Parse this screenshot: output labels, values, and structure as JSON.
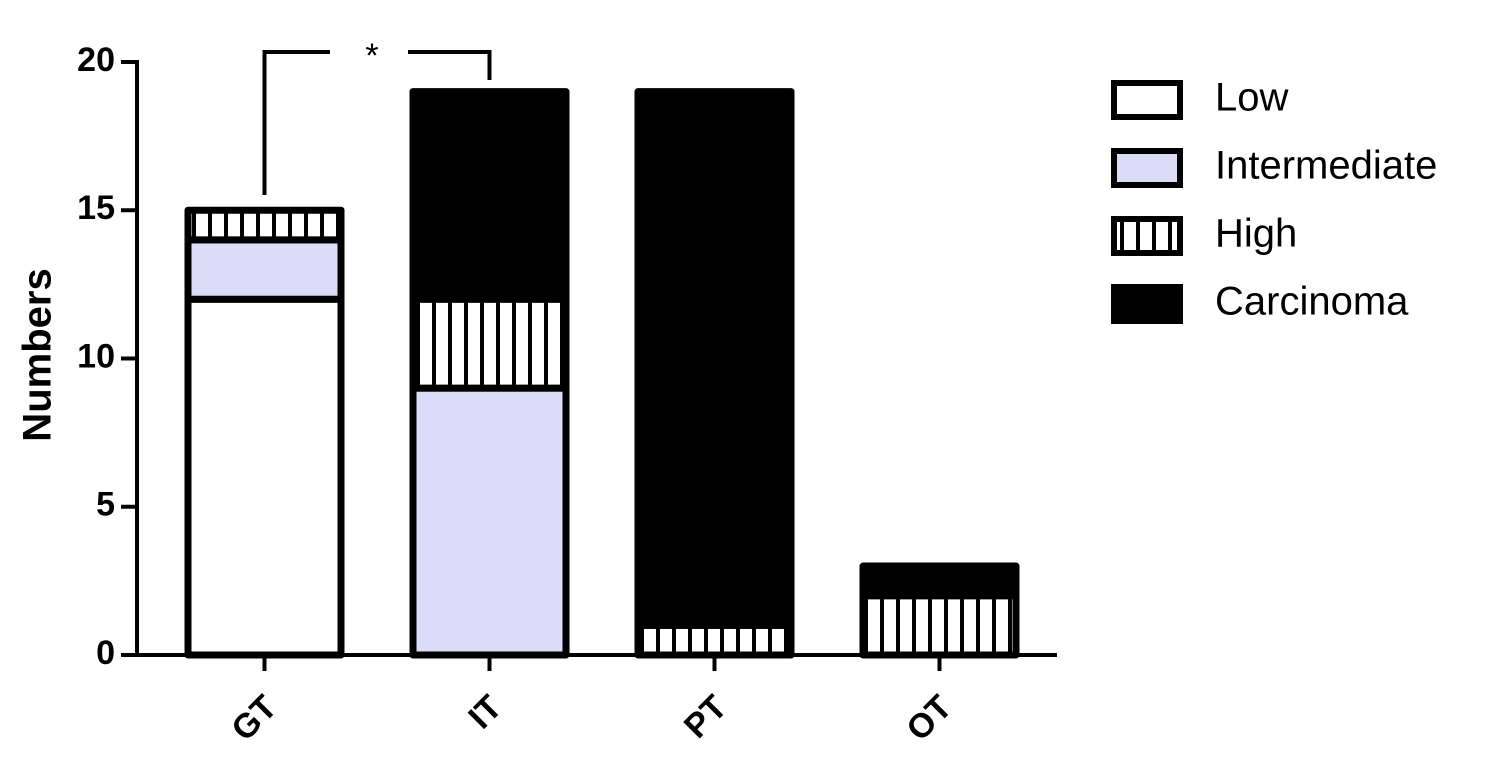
{
  "chart_data": {
    "type": "stacked-bar",
    "ylabel": "Numbers",
    "categories": [
      "GT",
      "IT",
      "PT",
      "OT"
    ],
    "series": [
      {
        "name": "Low",
        "color": "#ffffff",
        "values": [
          12,
          0,
          0,
          0
        ]
      },
      {
        "name": "Intermediate",
        "color": "#dcdcf8",
        "values": [
          2,
          9,
          0,
          0
        ]
      },
      {
        "name": "High",
        "color": "#ffffff",
        "pattern": "vertical-lines",
        "values": [
          1,
          3,
          1,
          2
        ]
      },
      {
        "name": "Carcinoma",
        "color": "#000000",
        "values": [
          0,
          7,
          18,
          1
        ]
      }
    ],
    "ylim": [
      0,
      20
    ],
    "yticks": [
      0,
      5,
      10,
      15,
      20
    ],
    "annotations": [
      {
        "text": "*"
      }
    ],
    "legend": "right"
  }
}
